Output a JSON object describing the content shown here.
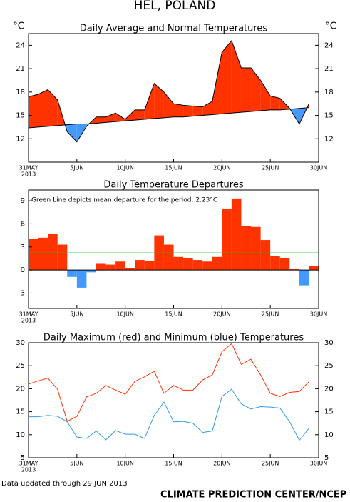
{
  "header": {
    "title": "HEL, POLAND"
  },
  "footer": {
    "updated": "Data updated through 29 JUN 2013",
    "credit": "CLIMATE PREDICTION CENTER/NCEP"
  },
  "chart_data": [
    {
      "type": "area",
      "title": "Daily Average and Normal Temperatures",
      "y_unit": "°C",
      "right_axis": true,
      "x": [
        0,
        1,
        2,
        3,
        4,
        5,
        6,
        7,
        8,
        9,
        10,
        11,
        12,
        13,
        14,
        15,
        16,
        17,
        18,
        19,
        20,
        21,
        22,
        23,
        24,
        25,
        26,
        27,
        28,
        29
      ],
      "values": [
        17.4,
        17.7,
        18.3,
        17.0,
        12.9,
        11.6,
        13.6,
        14.8,
        14.8,
        15.3,
        14.5,
        15.7,
        15.7,
        19.1,
        18.0,
        16.5,
        16.3,
        16.2,
        16.1,
        16.8,
        23.1,
        24.6,
        21.1,
        21.1,
        19.5,
        17.5,
        17.2,
        15.9,
        13.9,
        16.5
      ],
      "normal": [
        13.4,
        13.5,
        13.6,
        13.7,
        13.8,
        13.9,
        13.9,
        14.0,
        14.1,
        14.2,
        14.3,
        14.4,
        14.5,
        14.6,
        14.7,
        14.8,
        14.8,
        14.9,
        15.0,
        15.1,
        15.2,
        15.3,
        15.4,
        15.5,
        15.6,
        15.7,
        15.7,
        15.8,
        15.9,
        16.0
      ],
      "color_above": "#ff3300",
      "color_below": "#4499ff",
      "line_color": "#000000",
      "xlim": [
        0,
        30
      ],
      "xticks": [
        {
          "value": 0,
          "label": "31MAY"
        },
        {
          "value": 5,
          "label": "5JUN"
        },
        {
          "value": 10,
          "label": "10JUN"
        },
        {
          "value": 15,
          "label": "15JUN"
        },
        {
          "value": 20,
          "label": "20JUN"
        },
        {
          "value": 25,
          "label": "25JUN"
        },
        {
          "value": 30,
          "label": "30JUN"
        }
      ],
      "xtick_sublabel": "2013",
      "ylim": [
        9,
        25.5
      ],
      "yticks": [
        12,
        15,
        18,
        21,
        24
      ]
    },
    {
      "type": "bar",
      "title": "Daily Temperature Departures",
      "annotation": "Green Line depicts mean departure for the period:  2.23°C",
      "mean_line": 2.23,
      "mean_color": "#22bb22",
      "x": [
        0,
        1,
        2,
        3,
        4,
        5,
        6,
        7,
        8,
        9,
        10,
        11,
        12,
        13,
        14,
        15,
        16,
        17,
        18,
        19,
        20,
        21,
        22,
        23,
        24,
        25,
        26,
        27,
        28,
        29
      ],
      "values": [
        4.0,
        4.2,
        4.7,
        3.3,
        -0.9,
        -2.3,
        -0.3,
        0.8,
        0.7,
        1.1,
        0.2,
        1.3,
        1.2,
        4.5,
        3.3,
        1.7,
        1.5,
        1.3,
        1.1,
        1.7,
        7.9,
        9.3,
        5.7,
        5.6,
        3.9,
        1.8,
        1.5,
        0.1,
        -2.0,
        0.5
      ],
      "color_pos": "#ff3300",
      "color_neg": "#4499ff",
      "xlim": [
        0,
        30
      ],
      "xticks": [
        {
          "value": 0,
          "label": "31MAY"
        },
        {
          "value": 5,
          "label": "5JUN"
        },
        {
          "value": 10,
          "label": "10JUN"
        },
        {
          "value": 15,
          "label": "15JUN"
        },
        {
          "value": 20,
          "label": "20JUN"
        },
        {
          "value": 25,
          "label": "25JUN"
        },
        {
          "value": 30,
          "label": "30JUN"
        }
      ],
      "xtick_sublabel": "2013",
      "ylim": [
        -5,
        10.4
      ],
      "yticks": [
        -3,
        0,
        3,
        6,
        9
      ]
    },
    {
      "type": "line",
      "title": "Daily Maximum (red) and Minimum (blue) Temperatures",
      "right_axis": true,
      "x": [
        0,
        1,
        2,
        3,
        4,
        5,
        6,
        7,
        8,
        9,
        10,
        11,
        12,
        13,
        14,
        15,
        16,
        17,
        18,
        19,
        20,
        21,
        22,
        23,
        24,
        25,
        26,
        27,
        28,
        29
      ],
      "series": [
        {
          "color": "#ff3300",
          "values": [
            21.0,
            21.7,
            22.3,
            19.9,
            12.9,
            14.0,
            18.2,
            19.0,
            20.7,
            19.7,
            18.8,
            21.6,
            22.6,
            23.8,
            19.0,
            20.7,
            19.7,
            19.7,
            21.9,
            23.0,
            28.0,
            29.8,
            25.3,
            26.4,
            23.0,
            19.0,
            18.3,
            19.2,
            19.4,
            21.5
          ]
        },
        {
          "color": "#3399ee",
          "values": [
            13.9,
            13.9,
            14.2,
            14.0,
            12.8,
            9.5,
            9.2,
            10.8,
            8.9,
            10.9,
            10.1,
            10.1,
            9.2,
            14.2,
            17.1,
            12.8,
            12.9,
            12.5,
            10.5,
            10.8,
            18.3,
            19.9,
            16.7,
            15.6,
            16.1,
            16.0,
            15.8,
            12.8,
            8.8,
            11.4
          ]
        }
      ],
      "xlim": [
        0,
        30
      ],
      "xticks": [
        {
          "value": 0,
          "label": "31MAY"
        },
        {
          "value": 5,
          "label": "5JUN"
        },
        {
          "value": 10,
          "label": "10JUN"
        },
        {
          "value": 15,
          "label": "15JUN"
        },
        {
          "value": 20,
          "label": "20JUN"
        },
        {
          "value": 25,
          "label": "25JUN"
        },
        {
          "value": 30,
          "label": "30JUN"
        }
      ],
      "xtick_sublabel": "2013",
      "ylim": [
        5,
        30
      ],
      "yticks": [
        5,
        10,
        15,
        20,
        25,
        30
      ]
    }
  ]
}
